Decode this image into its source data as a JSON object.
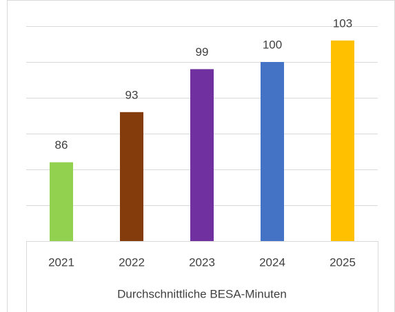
{
  "chart_data": {
    "type": "bar",
    "x_label": "Durchschnittliche BESA-Minuten",
    "categories": [
      "2021",
      "2022",
      "2023",
      "2024",
      "2025"
    ],
    "values": [
      86,
      93,
      99,
      100,
      103
    ],
    "colors": [
      "#92d050",
      "#843c0c",
      "#7030a0",
      "#4472c4",
      "#ffc000"
    ],
    "ylim": [
      75,
      105
    ],
    "yticks": [
      75,
      80,
      85,
      90,
      95,
      100,
      105
    ],
    "grid": true
  }
}
